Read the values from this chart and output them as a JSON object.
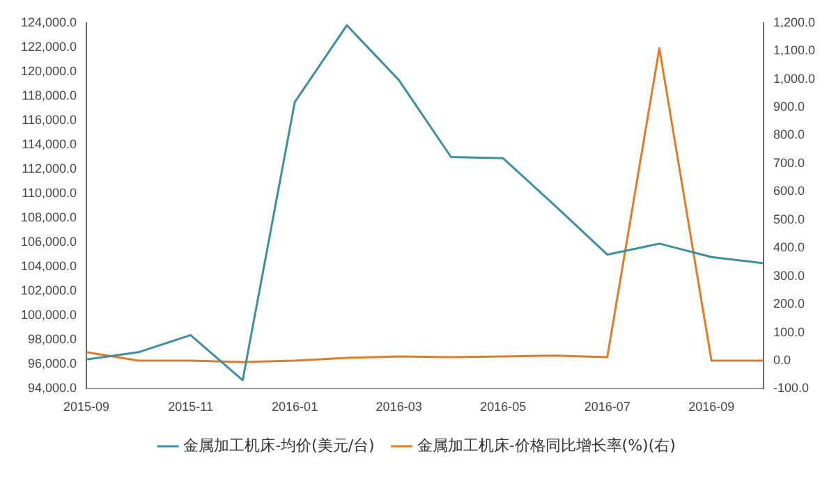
{
  "chart_data": {
    "type": "line",
    "categories": [
      "2015-09",
      null,
      "2015-11",
      null,
      "2016-01",
      null,
      "2016-03",
      null,
      "2016-05",
      null,
      "2016-07",
      null,
      "2016-09",
      null
    ],
    "series": [
      {
        "name": "金属加工机床-均价(美元/台)",
        "color": "#3f8ea0",
        "values": [
          96400,
          97000,
          98400,
          94700,
          117500,
          123800,
          119300,
          113000,
          112900,
          109000,
          105000,
          105900,
          104800,
          104300
        ]
      },
      {
        "name": "金属加工机床-价格同比增长率(%)(右)",
        "color": "#e07b2a",
        "axis": "y2",
        "values": [
          30,
          0,
          0,
          -5,
          0,
          10,
          15,
          12,
          15,
          18,
          12,
          1110,
          0,
          0
        ]
      }
    ],
    "ylim": [
      94000,
      124000
    ],
    "yticks": [
      {
        "value": 94000,
        "label": "94,000.0"
      },
      {
        "value": 96000,
        "label": "96,000.0"
      },
      {
        "value": 98000,
        "label": "98,000.0"
      },
      {
        "value": 100000,
        "label": "100,000.0"
      },
      {
        "value": 102000,
        "label": "102,000.0"
      },
      {
        "value": 104000,
        "label": "104,000.0"
      },
      {
        "value": 106000,
        "label": "106,000.0"
      },
      {
        "value": 108000,
        "label": "108,000.0"
      },
      {
        "value": 110000,
        "label": "110,000.0"
      },
      {
        "value": 112000,
        "label": "112,000.0"
      },
      {
        "value": 114000,
        "label": "114,000.0"
      },
      {
        "value": 116000,
        "label": "116,000.0"
      },
      {
        "value": 118000,
        "label": "118,000.0"
      },
      {
        "value": 120000,
        "label": "120,000.0"
      },
      {
        "value": 122000,
        "label": "122,000.0"
      },
      {
        "value": 124000,
        "label": "124,000.0"
      }
    ],
    "y2lim": [
      -100,
      1200
    ],
    "y2ticks": [
      {
        "value": -100,
        "label": "-100.0"
      },
      {
        "value": 0,
        "label": "0.0"
      },
      {
        "value": 100,
        "label": "100.0"
      },
      {
        "value": 200,
        "label": "200.0"
      },
      {
        "value": 300,
        "label": "300.0"
      },
      {
        "value": 400,
        "label": "400.0"
      },
      {
        "value": 500,
        "label": "500.0"
      },
      {
        "value": 600,
        "label": "600.0"
      },
      {
        "value": 700,
        "label": "700.0"
      },
      {
        "value": 800,
        "label": "800.0"
      },
      {
        "value": 900,
        "label": "900.0"
      },
      {
        "value": 1000,
        "label": "1,000.0"
      },
      {
        "value": 1100,
        "label": "1,100.0"
      },
      {
        "value": 1200,
        "label": "1,200.0"
      }
    ],
    "grid": false,
    "legend": "bottom",
    "marker": "none",
    "line_style": "solid"
  }
}
